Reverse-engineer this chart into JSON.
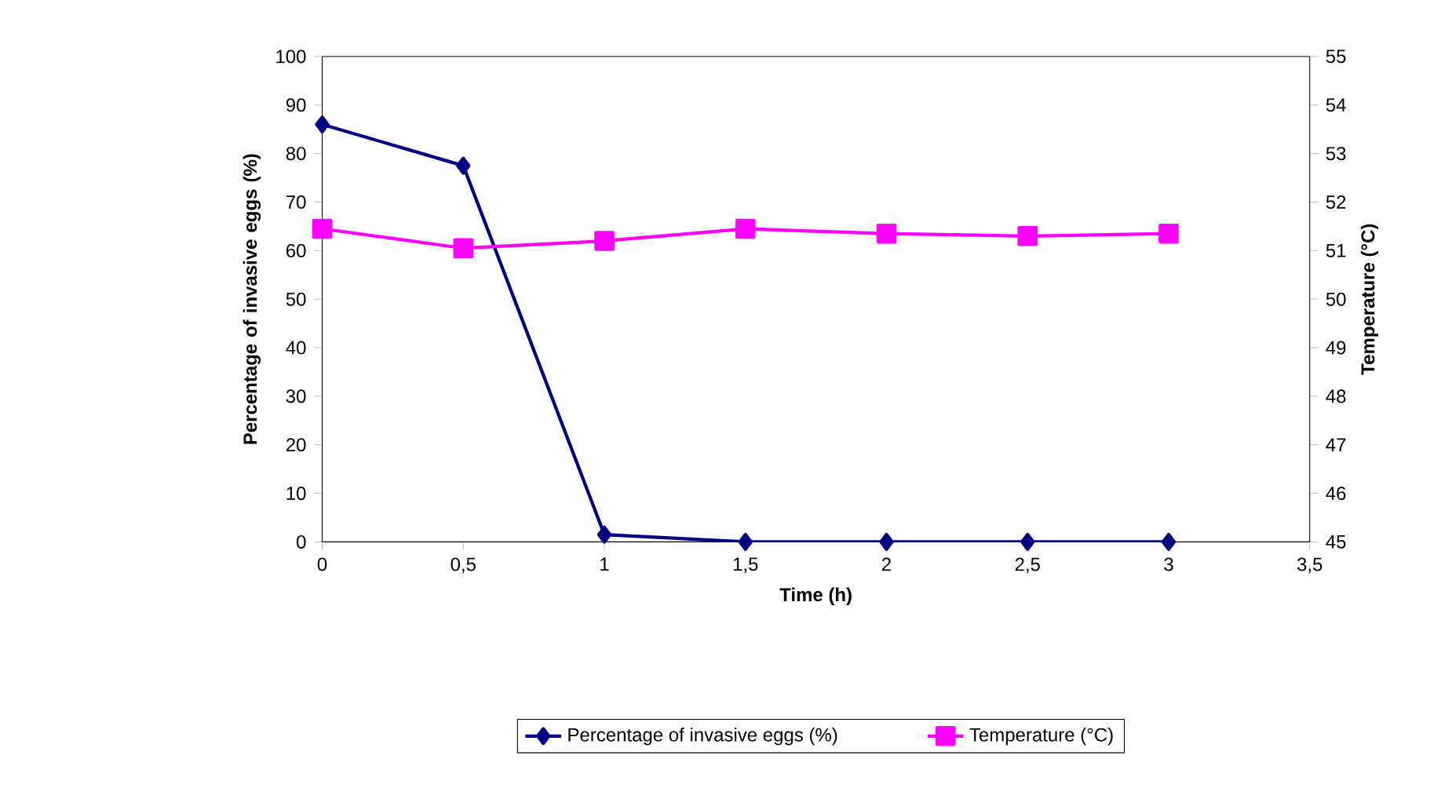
{
  "chart_data": {
    "type": "line",
    "xlabel": "Time (h)",
    "ylabel": "Percentage of invasive eggs (%)",
    "y2label": "Temperature (°C)",
    "x": [
      0,
      0.5,
      1,
      1.5,
      2,
      2.5,
      3
    ],
    "series": [
      {
        "name": "Percentage of invasive eggs (%)",
        "color": "#000080",
        "marker": "diamond",
        "values": [
          86,
          77.5,
          1.5,
          0,
          0,
          0,
          0
        ]
      },
      {
        "name": "Temperature (°C)",
        "color": "#ff00ff",
        "marker": "square",
        "axis": "y2",
        "values": [
          51.45,
          51.05,
          51.2,
          51.45,
          51.35,
          51.3,
          51.35
        ]
      }
    ],
    "xlim": [
      0,
      3.5
    ],
    "xticks": [
      0,
      {
        "value": 0.5,
        "label": "0,5"
      },
      1,
      {
        "value": 1.5,
        "label": "1,5"
      },
      2,
      {
        "value": 2.5,
        "label": "2,5"
      },
      3,
      {
        "value": 3.5,
        "label": "3,5"
      }
    ],
    "ylim": [
      0,
      100
    ],
    "yticks": [
      0,
      10,
      20,
      30,
      40,
      50,
      60,
      70,
      80,
      90,
      100
    ],
    "y2lim": [
      45,
      55
    ],
    "y2ticks": [
      45,
      46,
      47,
      48,
      49,
      50,
      51,
      52,
      53,
      54,
      55
    ],
    "grid": false,
    "legend": "bottom",
    "line_style": "solid"
  }
}
